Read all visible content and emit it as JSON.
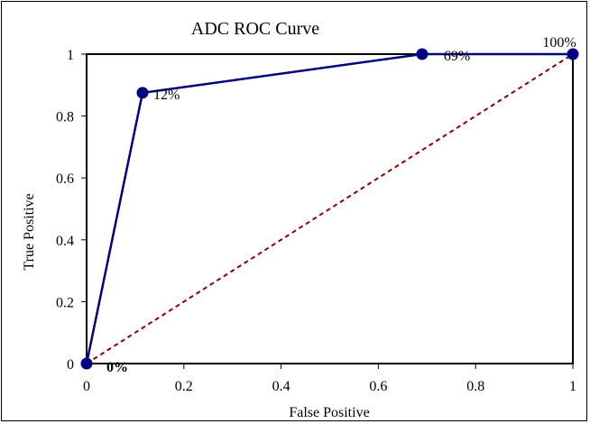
{
  "chart_data": {
    "type": "line",
    "title": "ADC ROC Curve",
    "xlabel": "False Positive",
    "ylabel": "True Positive",
    "xlim": [
      0,
      1
    ],
    "ylim": [
      0,
      1
    ],
    "x_ticks": [
      "0",
      "0.2",
      "0.4",
      "0.6",
      "0.8",
      "1"
    ],
    "y_ticks": [
      "0",
      "0.2",
      "0.4",
      "0.6",
      "0.8",
      "1"
    ],
    "grid": false,
    "legend": "none",
    "series": [
      {
        "x": [
          0,
          0.115,
          0.69,
          1
        ],
        "y": [
          0,
          0.875,
          1,
          1
        ],
        "labels": [
          "0%",
          "12%",
          "69%",
          "100%"
        ],
        "color": "#000080",
        "marker": "circle"
      },
      {
        "x": [
          0,
          1
        ],
        "y": [
          0,
          1
        ],
        "color": "#8b0000",
        "style": "dashed"
      }
    ]
  }
}
